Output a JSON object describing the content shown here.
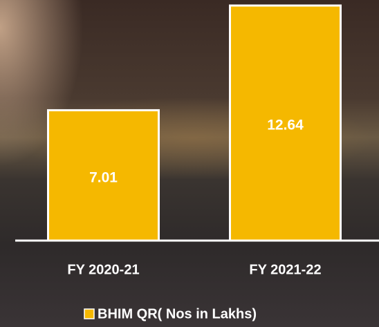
{
  "chart_data": {
    "type": "bar",
    "categories": [
      "FY 2020-21",
      "FY 2021-22"
    ],
    "series": [
      {
        "name": "BHIM QR( Nos in Lakhs)",
        "color": "#f5b800",
        "values": [
          7.01,
          12.64
        ]
      }
    ],
    "legend": "bottom"
  }
}
